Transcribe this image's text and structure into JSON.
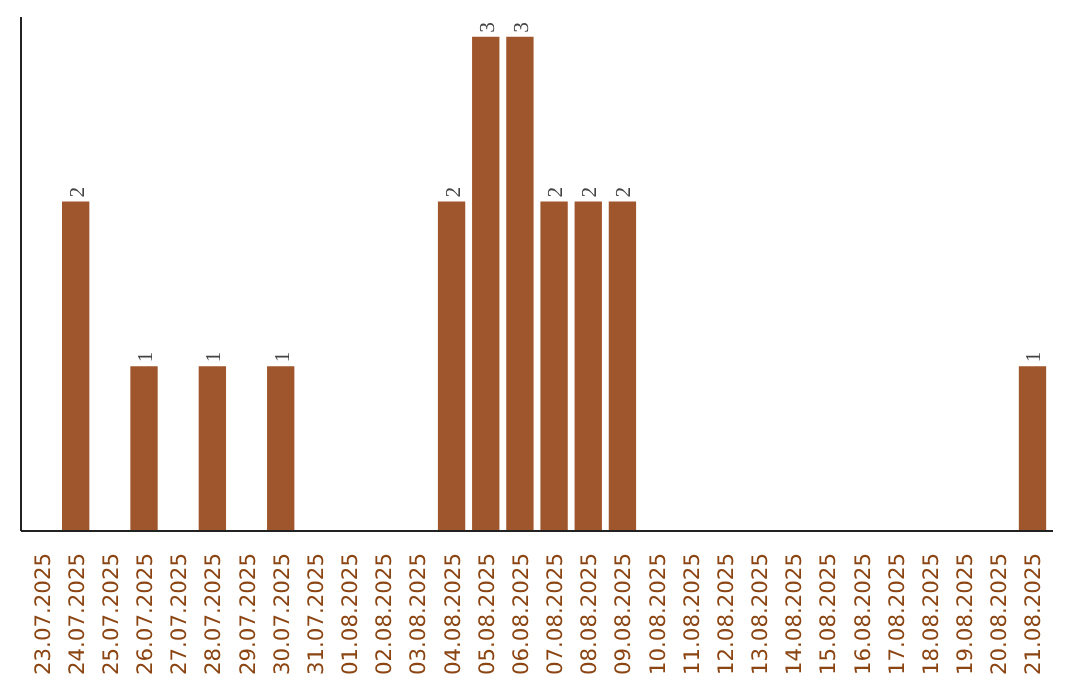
{
  "chart_data": {
    "type": "bar",
    "categories": [
      "23.07.2025",
      "24.07.2025",
      "25.07.2025",
      "26.07.2025",
      "27.07.2025",
      "28.07.2025",
      "29.07.2025",
      "30.07.2025",
      "31.07.2025",
      "01.08.2025",
      "02.08.2025",
      "03.08.2025",
      "04.08.2025",
      "05.08.2025",
      "06.08.2025",
      "07.08.2025",
      "08.08.2025",
      "09.08.2025",
      "10.08.2025",
      "11.08.2025",
      "12.08.2025",
      "13.08.2025",
      "14.08.2025",
      "15.08.2025",
      "16.08.2025",
      "17.08.2025",
      "18.08.2025",
      "19.08.2025",
      "20.08.2025",
      "21.08.2025"
    ],
    "values": [
      0,
      2,
      0,
      1,
      0,
      1,
      0,
      1,
      0,
      0,
      0,
      0,
      2,
      3,
      3,
      2,
      2,
      2,
      0,
      0,
      0,
      0,
      0,
      0,
      0,
      0,
      0,
      0,
      0,
      1
    ],
    "value_labels": [
      null,
      "2",
      null,
      "1",
      null,
      "1",
      null,
      "1",
      null,
      null,
      null,
      null,
      "2",
      "3",
      "3",
      "2",
      "2",
      "2",
      null,
      null,
      null,
      null,
      null,
      null,
      null,
      null,
      null,
      null,
      null,
      "1"
    ],
    "color": "#a0562c",
    "tick_labels": "x",
    "grid": false
  }
}
